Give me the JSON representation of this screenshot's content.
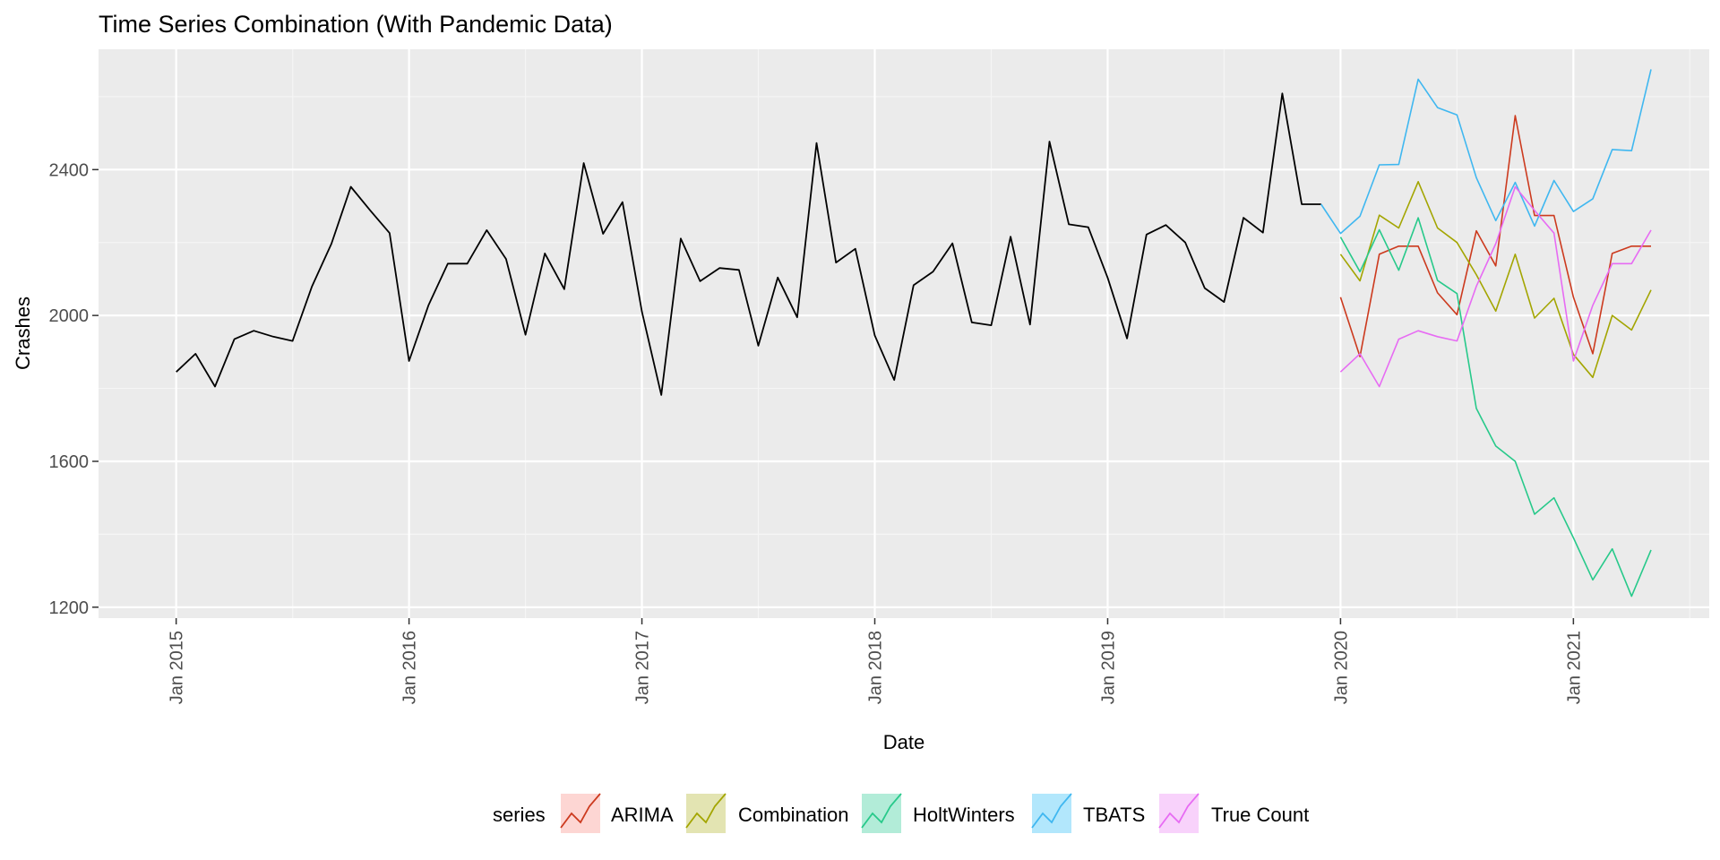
{
  "chart_data": {
    "type": "line",
    "title": "Time Series Combination (With Pandemic Data)",
    "xlabel": "Date",
    "ylabel": "Crashes",
    "xlim": [
      "2014-09",
      "2021-08"
    ],
    "ylim": [
      1170,
      2730
    ],
    "x_ticks": [
      "Jan 2015",
      "Jan 2016",
      "Jan 2017",
      "Jan 2018",
      "Jan 2019",
      "Jan 2020",
      "Jan 2021"
    ],
    "y_ticks": [
      1200,
      1600,
      2000,
      2400
    ],
    "grid": true,
    "legend": {
      "position": "bottom",
      "title": "series"
    },
    "history": {
      "start": "2015-01",
      "color": "#000000",
      "values": [
        1845,
        1895,
        1805,
        1935,
        1958,
        1942,
        1930,
        2080,
        2197,
        2353,
        2288,
        2226,
        1875,
        2028,
        2142,
        2142,
        2234,
        2155,
        1947,
        2170,
        2072,
        2418,
        2224,
        2311,
        2010,
        1782,
        2211,
        2094,
        2130,
        2125,
        1917,
        2104,
        1995,
        2473,
        2145,
        2183,
        1945,
        1823,
        2083,
        2120,
        2198,
        1981,
        1973,
        2216,
        1975,
        2477,
        2250,
        2242,
        2103,
        1937,
        2222,
        2248,
        2200,
        2075,
        2037,
        2268,
        2227,
        2609,
        2305,
        2305
      ]
    },
    "series": [
      {
        "name": "ARIMA",
        "color": "#F8766D",
        "line_color": "#CC3A1E",
        "start": "2020-01",
        "values": [
          2050,
          1887,
          2168,
          2190,
          2190,
          2062,
          2002,
          2232,
          2136,
          2548,
          2274,
          2274,
          2050,
          1895,
          2170,
          2190,
          2190
        ]
      },
      {
        "name": "Combination",
        "color": "#A3A500",
        "line_color": "#A3A500",
        "start": "2020-01",
        "values": [
          2168,
          2095,
          2275,
          2240,
          2367,
          2240,
          2200,
          2112,
          2012,
          2168,
          1993,
          2047,
          1893,
          1830,
          2000,
          1960,
          2070
        ]
      },
      {
        "name": "HoltWinters",
        "color": "#00BF7D",
        "line_color": "#27C98A",
        "start": "2020-01",
        "values": [
          2215,
          2120,
          2235,
          2124,
          2268,
          2096,
          2060,
          1745,
          1642,
          1600,
          1455,
          1500,
          1390,
          1275,
          1360,
          1230,
          1357
        ]
      },
      {
        "name": "TBATS",
        "color": "#00B0F6",
        "line_color": "#3FB7F0",
        "start": "2019-12",
        "values": [
          2305,
          2225,
          2272,
          2413,
          2414,
          2648,
          2570,
          2550,
          2378,
          2260,
          2365,
          2245,
          2370,
          2285,
          2320,
          2455,
          2452,
          2675
        ]
      },
      {
        "name": "True Count",
        "color": "#E76BF3",
        "line_color": "#E76BF3",
        "start": "2020-01",
        "values": [
          1845,
          1895,
          1805,
          1935,
          1958,
          1942,
          1930,
          2080,
          2197,
          2353,
          2288,
          2226,
          1875,
          2028,
          2142,
          2142,
          2234
        ]
      }
    ]
  }
}
